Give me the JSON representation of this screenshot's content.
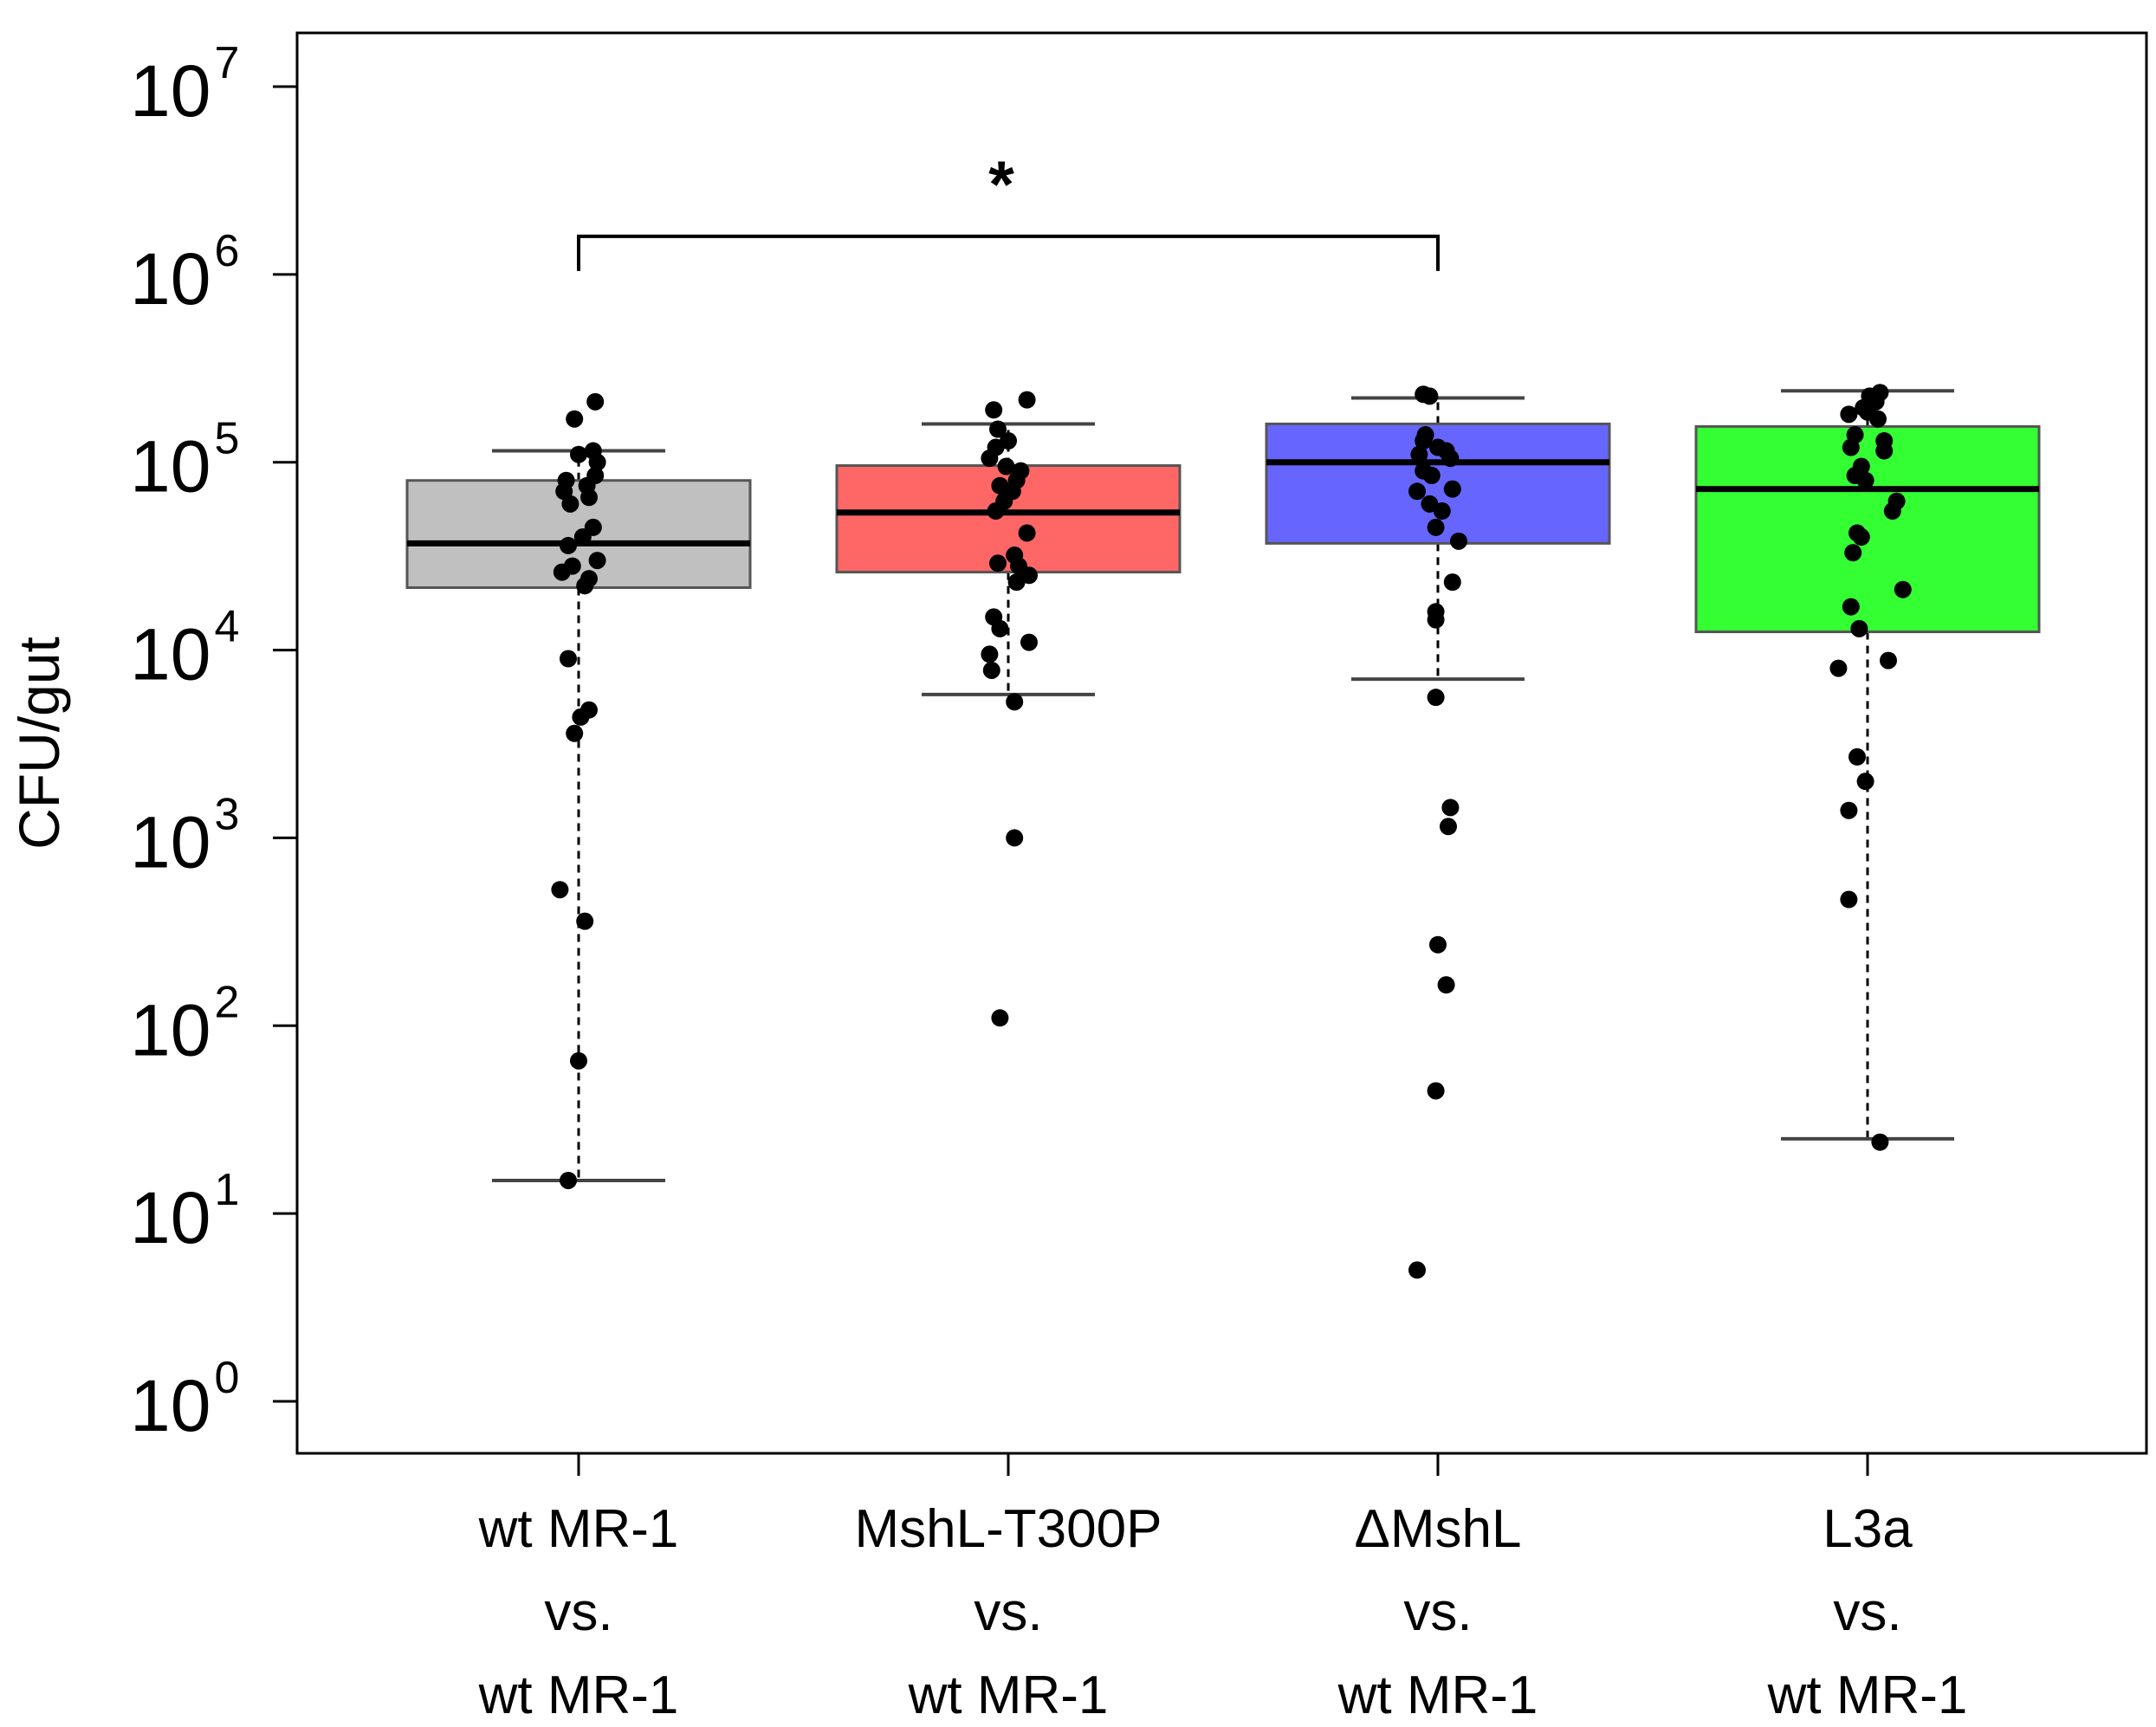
{
  "chart_data": {
    "type": "box",
    "ylabel": "CFU/gut",
    "yscale": "log10",
    "ylim": [
      1,
      10000000
    ],
    "y_ticks": [
      {
        "value": 1,
        "base": "10",
        "exp": "0"
      },
      {
        "value": 10,
        "base": "10",
        "exp": "1"
      },
      {
        "value": 100,
        "base": "10",
        "exp": "2"
      },
      {
        "value": 1000,
        "base": "10",
        "exp": "3"
      },
      {
        "value": 10000,
        "base": "10",
        "exp": "4"
      },
      {
        "value": 100000,
        "base": "10",
        "exp": "5"
      },
      {
        "value": 1000000,
        "base": "10",
        "exp": "6"
      },
      {
        "value": 10000000,
        "base": "10",
        "exp": "7"
      }
    ],
    "groups": [
      {
        "label": [
          "wt MR-1",
          "vs.",
          "wt MR-1"
        ],
        "color": "#c0c0c0",
        "q1": 21500,
        "median": 37000,
        "q3": 80000,
        "whisker_low": 15,
        "whisker_high": 115000,
        "points": [
          {
            "v": 210000,
            "j": 0.08
          },
          {
            "v": 170000,
            "j": -0.02
          },
          {
            "v": 115000,
            "j": 0.07
          },
          {
            "v": 110000,
            "j": 0.0
          },
          {
            "v": 100000,
            "j": 0.09
          },
          {
            "v": 85000,
            "j": 0.08
          },
          {
            "v": 80000,
            "j": -0.06
          },
          {
            "v": 75000,
            "j": 0.04
          },
          {
            "v": 70000,
            "j": -0.07
          },
          {
            "v": 65000,
            "j": 0.05
          },
          {
            "v": 60000,
            "j": -0.04
          },
          {
            "v": 45000,
            "j": 0.07
          },
          {
            "v": 40000,
            "j": 0.02
          },
          {
            "v": 36000,
            "j": -0.05
          },
          {
            "v": 30000,
            "j": 0.09
          },
          {
            "v": 28000,
            "j": -0.03
          },
          {
            "v": 26000,
            "j": -0.08
          },
          {
            "v": 24000,
            "j": 0.05
          },
          {
            "v": 22000,
            "j": 0.03
          },
          {
            "v": 9000,
            "j": -0.05
          },
          {
            "v": 4800,
            "j": 0.05
          },
          {
            "v": 4400,
            "j": 0.01
          },
          {
            "v": 3600,
            "j": -0.02
          },
          {
            "v": 530,
            "j": -0.09
          },
          {
            "v": 360,
            "j": 0.03
          },
          {
            "v": 65,
            "j": 0.0
          },
          {
            "v": 15,
            "j": -0.05
          }
        ]
      },
      {
        "label": [
          "MshL-T300P",
          "vs.",
          "wt MR-1"
        ],
        "color": "#ff6666",
        "q1": 26000,
        "median": 54000,
        "q3": 96000,
        "whisker_low": 5800,
        "whisker_high": 160000,
        "points": [
          {
            "v": 215000,
            "j": 0.09
          },
          {
            "v": 190000,
            "j": -0.07
          },
          {
            "v": 150000,
            "j": -0.05
          },
          {
            "v": 130000,
            "j": 0.0
          },
          {
            "v": 120000,
            "j": -0.06
          },
          {
            "v": 105000,
            "j": -0.09
          },
          {
            "v": 95000,
            "j": -0.01
          },
          {
            "v": 90000,
            "j": 0.06
          },
          {
            "v": 80000,
            "j": 0.04
          },
          {
            "v": 75000,
            "j": -0.04
          },
          {
            "v": 70000,
            "j": 0.02
          },
          {
            "v": 62000,
            "j": -0.02
          },
          {
            "v": 55000,
            "j": -0.06
          },
          {
            "v": 42000,
            "j": 0.09
          },
          {
            "v": 32000,
            "j": 0.03
          },
          {
            "v": 29000,
            "j": -0.05
          },
          {
            "v": 28000,
            "j": 0.05
          },
          {
            "v": 25000,
            "j": 0.1
          },
          {
            "v": 23000,
            "j": 0.04
          },
          {
            "v": 15000,
            "j": -0.07
          },
          {
            "v": 13000,
            "j": -0.04
          },
          {
            "v": 11000,
            "j": 0.1
          },
          {
            "v": 9500,
            "j": -0.09
          },
          {
            "v": 7800,
            "j": -0.08
          },
          {
            "v": 5300,
            "j": 0.03
          },
          {
            "v": 1000,
            "j": 0.03
          },
          {
            "v": 110,
            "j": -0.04
          }
        ]
      },
      {
        "label": [
          "ΔMshL",
          "vs.",
          "wt MR-1"
        ],
        "color": "#6666ff",
        "q1": 37000,
        "median": 100000,
        "q3": 160000,
        "whisker_low": 7000,
        "whisker_high": 220000,
        "points": [
          {
            "v": 230000,
            "j": -0.07
          },
          {
            "v": 225000,
            "j": -0.04
          },
          {
            "v": 140000,
            "j": -0.06
          },
          {
            "v": 130000,
            "j": -0.07
          },
          {
            "v": 120000,
            "j": 0.0
          },
          {
            "v": 115000,
            "j": 0.04
          },
          {
            "v": 110000,
            "j": -0.09
          },
          {
            "v": 105000,
            "j": 0.06
          },
          {
            "v": 90000,
            "j": -0.07
          },
          {
            "v": 85000,
            "j": -0.03
          },
          {
            "v": 70000,
            "j": -0.1
          },
          {
            "v": 72000,
            "j": 0.07
          },
          {
            "v": 60000,
            "j": -0.04
          },
          {
            "v": 55000,
            "j": 0.02
          },
          {
            "v": 45000,
            "j": -0.01
          },
          {
            "v": 38000,
            "j": 0.1
          },
          {
            "v": 23000,
            "j": 0.07
          },
          {
            "v": 16000,
            "j": -0.01
          },
          {
            "v": 14500,
            "j": -0.01
          },
          {
            "v": 5600,
            "j": -0.01
          },
          {
            "v": 1450,
            "j": 0.06
          },
          {
            "v": 1150,
            "j": 0.05
          },
          {
            "v": 270,
            "j": 0.0
          },
          {
            "v": 165,
            "j": 0.04
          },
          {
            "v": 45,
            "j": -0.01
          },
          {
            "v": 5,
            "j": -0.1
          }
        ]
      },
      {
        "label": [
          "L3a",
          "vs.",
          "wt MR-1"
        ],
        "color": "#33ff33",
        "q1": 12500,
        "median": 72000,
        "q3": 155000,
        "whisker_low": 25,
        "whisker_high": 240000,
        "points": [
          {
            "v": 235000,
            "j": 0.06
          },
          {
            "v": 225000,
            "j": 0.01
          },
          {
            "v": 210000,
            "j": 0.04
          },
          {
            "v": 195000,
            "j": -0.02
          },
          {
            "v": 185000,
            "j": 0.0
          },
          {
            "v": 180000,
            "j": -0.09
          },
          {
            "v": 170000,
            "j": 0.05
          },
          {
            "v": 140000,
            "j": -0.06
          },
          {
            "v": 130000,
            "j": 0.08
          },
          {
            "v": 120000,
            "j": -0.08
          },
          {
            "v": 115000,
            "j": 0.08
          },
          {
            "v": 95000,
            "j": -0.03
          },
          {
            "v": 85000,
            "j": -0.06
          },
          {
            "v": 80000,
            "j": -0.01
          },
          {
            "v": 62000,
            "j": 0.14
          },
          {
            "v": 55000,
            "j": 0.12
          },
          {
            "v": 42000,
            "j": -0.05
          },
          {
            "v": 40000,
            "j": -0.03
          },
          {
            "v": 33000,
            "j": -0.07
          },
          {
            "v": 21000,
            "j": 0.17
          },
          {
            "v": 17000,
            "j": -0.08
          },
          {
            "v": 13000,
            "j": -0.04
          },
          {
            "v": 8800,
            "j": 0.1
          },
          {
            "v": 8000,
            "j": -0.14
          },
          {
            "v": 2700,
            "j": -0.05
          },
          {
            "v": 2000,
            "j": -0.01
          },
          {
            "v": 1400,
            "j": -0.09
          },
          {
            "v": 470,
            "j": -0.09
          },
          {
            "v": 24,
            "j": 0.06
          }
        ]
      }
    ],
    "annotations": [
      {
        "text": "*",
        "from_group": 0,
        "to_group": 2,
        "bracket_y": 1000000
      }
    ]
  }
}
